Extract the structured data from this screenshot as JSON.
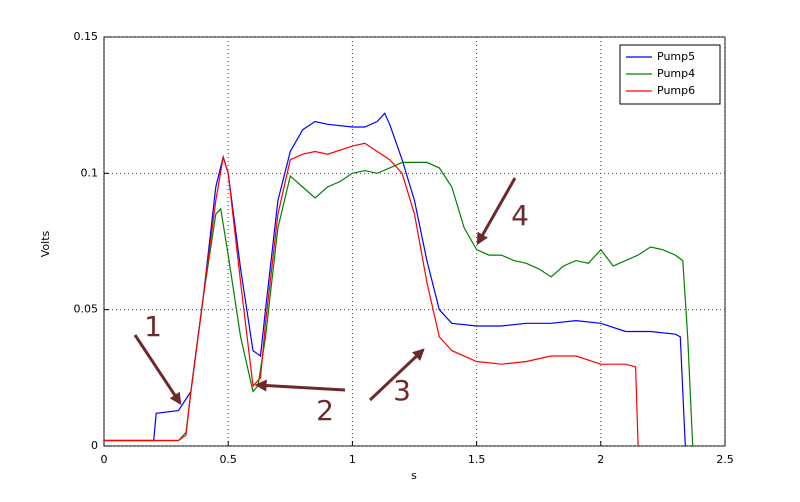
{
  "chart_data": {
    "type": "line",
    "xlabel": "s",
    "ylabel": "Volts",
    "xlim": [
      0,
      2.5
    ],
    "xticks": [
      0,
      0.5,
      1,
      1.5,
      2,
      2.5
    ],
    "ylim": [
      0,
      0.15
    ],
    "yticks": [
      0,
      0.05,
      0.1,
      0.15
    ],
    "grid": true,
    "legend": "upper right",
    "annotations": [
      "1",
      "2",
      "3",
      "4"
    ],
    "series": [
      {
        "name": "Pump5",
        "color": "#0000ff",
        "x": [
          0,
          0.2,
          0.21,
          0.3,
          0.35,
          0.4,
          0.45,
          0.48,
          0.5,
          0.55,
          0.6,
          0.63,
          0.65,
          0.7,
          0.75,
          0.8,
          0.85,
          0.9,
          1.0,
          1.05,
          1.1,
          1.13,
          1.15,
          1.2,
          1.25,
          1.3,
          1.35,
          1.4,
          1.5,
          1.6,
          1.7,
          1.8,
          1.9,
          2.0,
          2.1,
          2.2,
          2.3,
          2.32,
          2.34
        ],
        "values": [
          0.002,
          0.002,
          0.012,
          0.013,
          0.02,
          0.055,
          0.095,
          0.106,
          0.1,
          0.065,
          0.035,
          0.033,
          0.05,
          0.09,
          0.108,
          0.116,
          0.119,
          0.118,
          0.117,
          0.117,
          0.119,
          0.122,
          0.118,
          0.105,
          0.09,
          0.068,
          0.05,
          0.045,
          0.044,
          0.044,
          0.045,
          0.045,
          0.046,
          0.045,
          0.042,
          0.042,
          0.041,
          0.04,
          0
        ]
      },
      {
        "name": "Pump4",
        "color": "#008000",
        "x": [
          0,
          0.3,
          0.33,
          0.35,
          0.4,
          0.45,
          0.47,
          0.5,
          0.55,
          0.6,
          0.62,
          0.65,
          0.7,
          0.75,
          0.8,
          0.85,
          0.9,
          0.95,
          1.0,
          1.05,
          1.1,
          1.15,
          1.2,
          1.25,
          1.3,
          1.35,
          1.4,
          1.45,
          1.5,
          1.55,
          1.6,
          1.65,
          1.7,
          1.75,
          1.8,
          1.85,
          1.9,
          1.95,
          2.0,
          2.05,
          2.1,
          2.15,
          2.2,
          2.25,
          2.3,
          2.33,
          2.35,
          2.37
        ],
        "values": [
          0.002,
          0.002,
          0.005,
          0.02,
          0.055,
          0.085,
          0.087,
          0.07,
          0.04,
          0.02,
          0.022,
          0.04,
          0.08,
          0.099,
          0.095,
          0.091,
          0.095,
          0.097,
          0.1,
          0.101,
          0.1,
          0.102,
          0.104,
          0.104,
          0.104,
          0.102,
          0.095,
          0.08,
          0.072,
          0.07,
          0.07,
          0.068,
          0.067,
          0.065,
          0.062,
          0.066,
          0.068,
          0.067,
          0.072,
          0.066,
          0.068,
          0.07,
          0.073,
          0.072,
          0.07,
          0.068,
          0.04,
          0
        ]
      },
      {
        "name": "Pump6",
        "color": "#ff0000",
        "x": [
          0,
          0.3,
          0.33,
          0.35,
          0.4,
          0.45,
          0.48,
          0.5,
          0.55,
          0.6,
          0.63,
          0.65,
          0.7,
          0.75,
          0.8,
          0.85,
          0.9,
          1.0,
          1.05,
          1.1,
          1.15,
          1.2,
          1.25,
          1.3,
          1.35,
          1.4,
          1.5,
          1.6,
          1.7,
          1.8,
          1.9,
          2.0,
          2.1,
          2.14,
          2.15
        ],
        "values": [
          0.002,
          0.002,
          0.004,
          0.02,
          0.055,
          0.09,
          0.106,
          0.1,
          0.06,
          0.022,
          0.025,
          0.045,
          0.085,
          0.105,
          0.107,
          0.108,
          0.107,
          0.11,
          0.111,
          0.108,
          0.105,
          0.1,
          0.085,
          0.06,
          0.04,
          0.035,
          0.031,
          0.03,
          0.031,
          0.033,
          0.033,
          0.03,
          0.03,
          0.029,
          0
        ]
      }
    ]
  }
}
